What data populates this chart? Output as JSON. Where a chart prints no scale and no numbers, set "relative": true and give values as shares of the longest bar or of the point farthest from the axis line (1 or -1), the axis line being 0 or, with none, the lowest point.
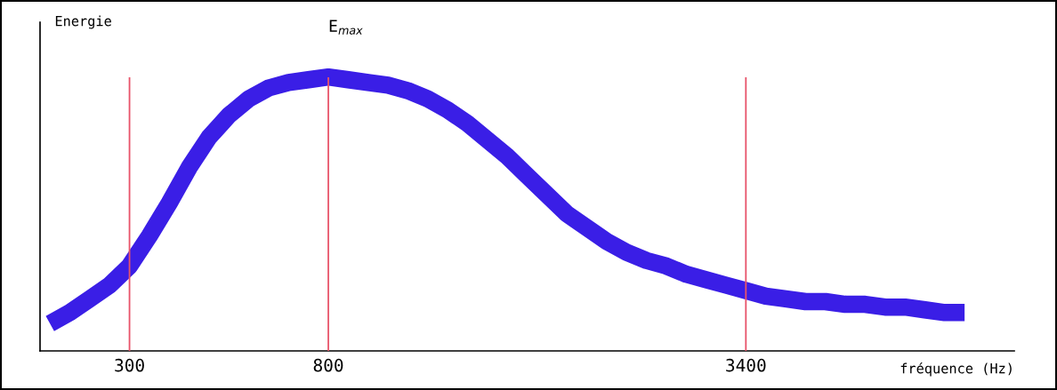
{
  "chart_data": {
    "type": "line",
    "relative": true,
    "xlabel": "fréquence (Hz)",
    "ylabel": "Energie",
    "categories": [
      null,
      null,
      null,
      null,
      "300",
      null,
      null,
      null,
      null,
      null,
      null,
      null,
      null,
      null,
      "800",
      null,
      null,
      null,
      null,
      null,
      null,
      null,
      null,
      null,
      null,
      null,
      null,
      null,
      null,
      null,
      null,
      null,
      null,
      null,
      null,
      "3400",
      null,
      null,
      null,
      null,
      null,
      null,
      null,
      null,
      null,
      null,
      null
    ],
    "series": [
      {
        "color": "#3a1ee6",
        "values": [
          0.1,
          0.14,
          0.19,
          0.24,
          0.31,
          0.42,
          0.54,
          0.67,
          0.78,
          0.86,
          0.92,
          0.96,
          0.98,
          0.99,
          1.0,
          0.99,
          0.98,
          0.97,
          0.95,
          0.92,
          0.88,
          0.83,
          0.77,
          0.71,
          0.64,
          0.57,
          0.5,
          0.45,
          0.4,
          0.36,
          0.33,
          0.31,
          0.28,
          0.26,
          0.24,
          0.22,
          0.2,
          0.19,
          0.18,
          0.18,
          0.17,
          0.17,
          0.16,
          0.16,
          0.15,
          0.14,
          0.14
        ]
      }
    ],
    "ref_lines": [
      {
        "axis": "x",
        "value": "300",
        "color": "#e8546a"
      },
      {
        "axis": "x",
        "value": "800",
        "color": "#e8546a"
      },
      {
        "axis": "x",
        "value": "3400",
        "color": "#e8546a"
      }
    ],
    "annotations": [
      {
        "text": "E$_{max}$",
        "x": "800",
        "y": 1.0
      }
    ],
    "tick_labels": "x",
    "grid": false,
    "legend": false,
    "marker": "none",
    "line_style": "solid"
  }
}
